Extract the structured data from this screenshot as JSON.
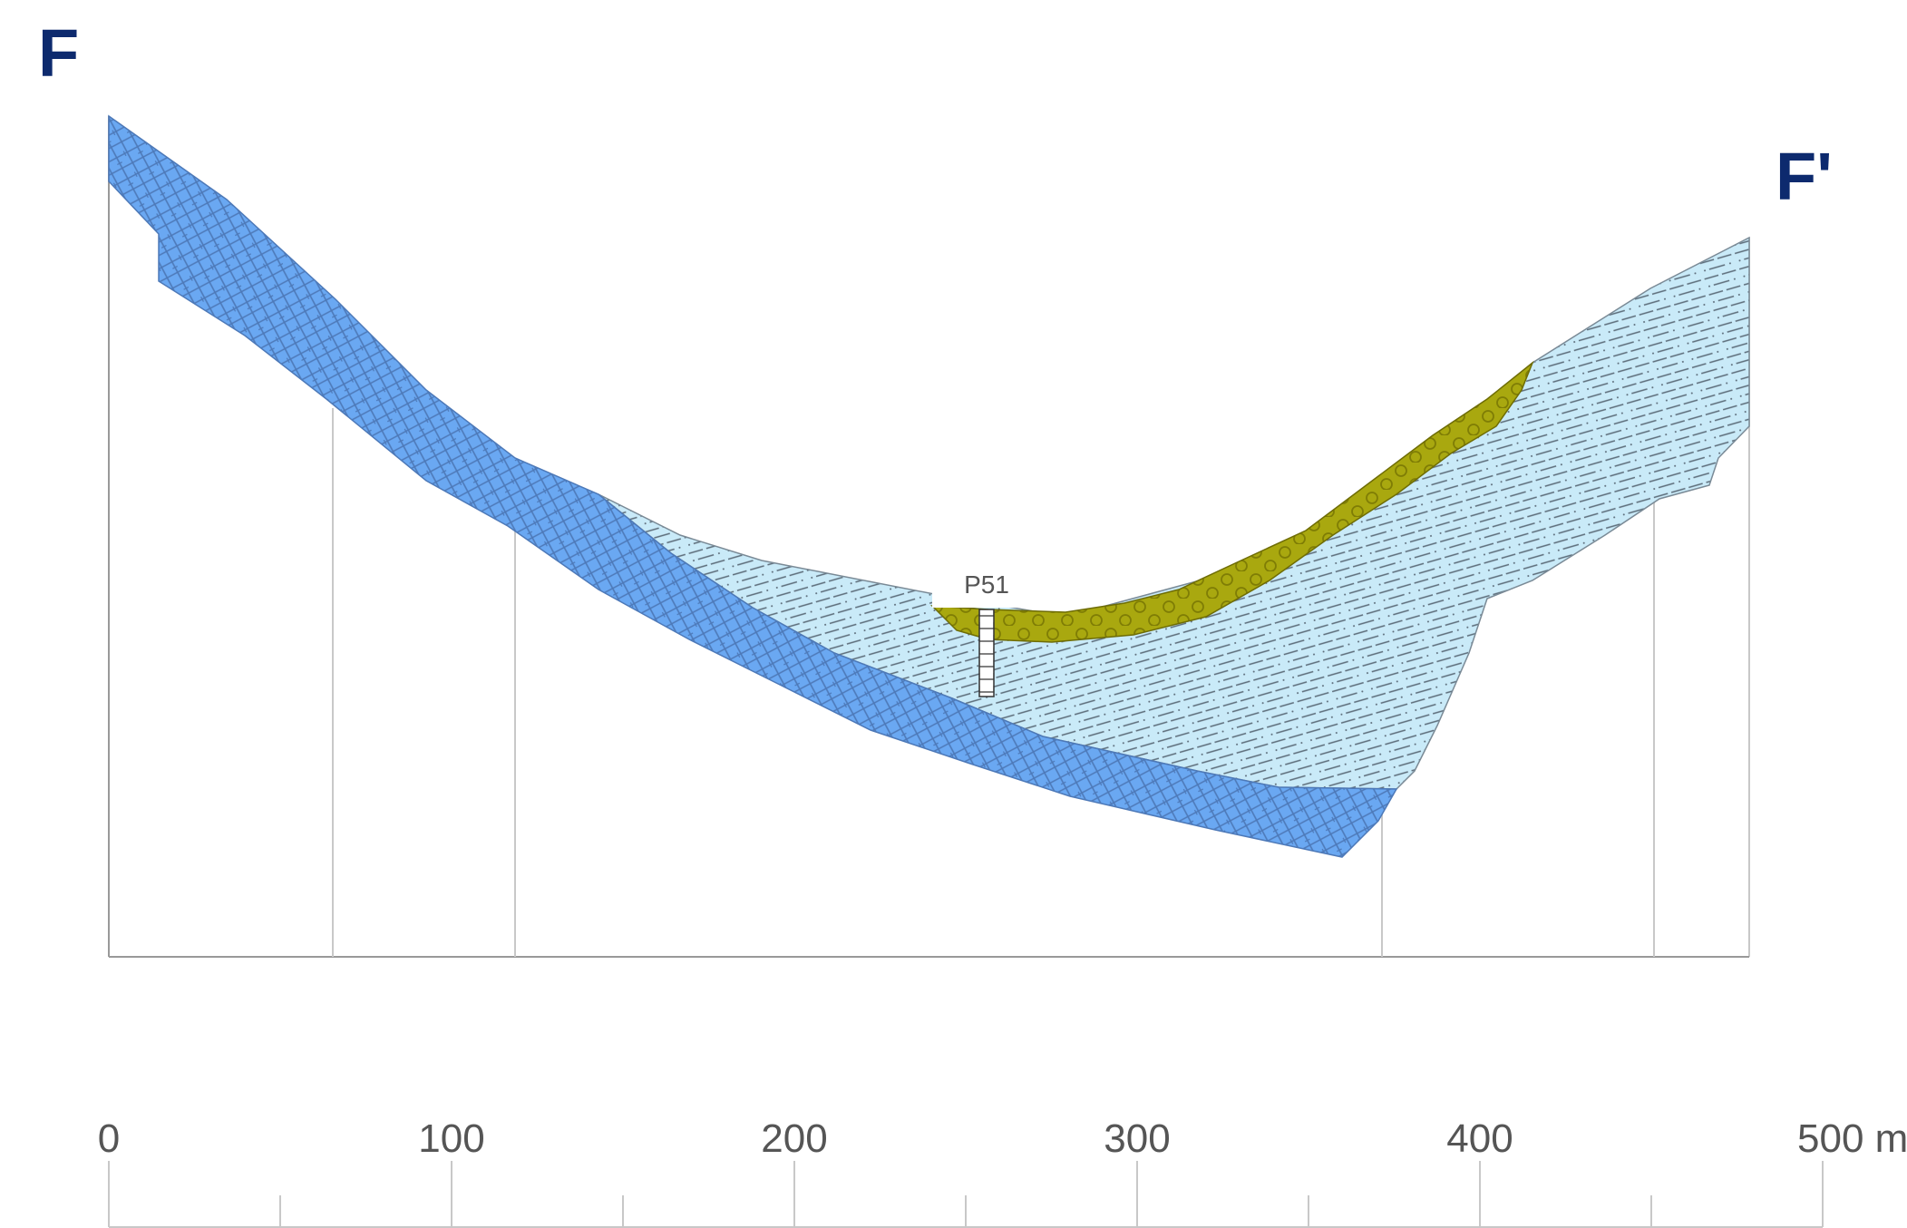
{
  "section": {
    "start_label": "F",
    "end_label": "F'"
  },
  "borehole": {
    "label": "P51"
  },
  "scale_bar": {
    "unit": "m",
    "labels": [
      "0",
      "100",
      "200",
      "300",
      "400",
      "500 m"
    ],
    "values": [
      0,
      100,
      200,
      300,
      400,
      500
    ],
    "minor_step": 50
  },
  "colors": {
    "bedrock": "#6aa8f2",
    "bedrock_hatch": "#4d79b8",
    "clay_silt": "#c9eaf8",
    "clay_silt_hatch": "#5b6b78",
    "gravel": "#a9a80f",
    "gravel_hatch": "#7f7d05",
    "grid": "#c8c8c8",
    "axis": "#999999"
  }
}
